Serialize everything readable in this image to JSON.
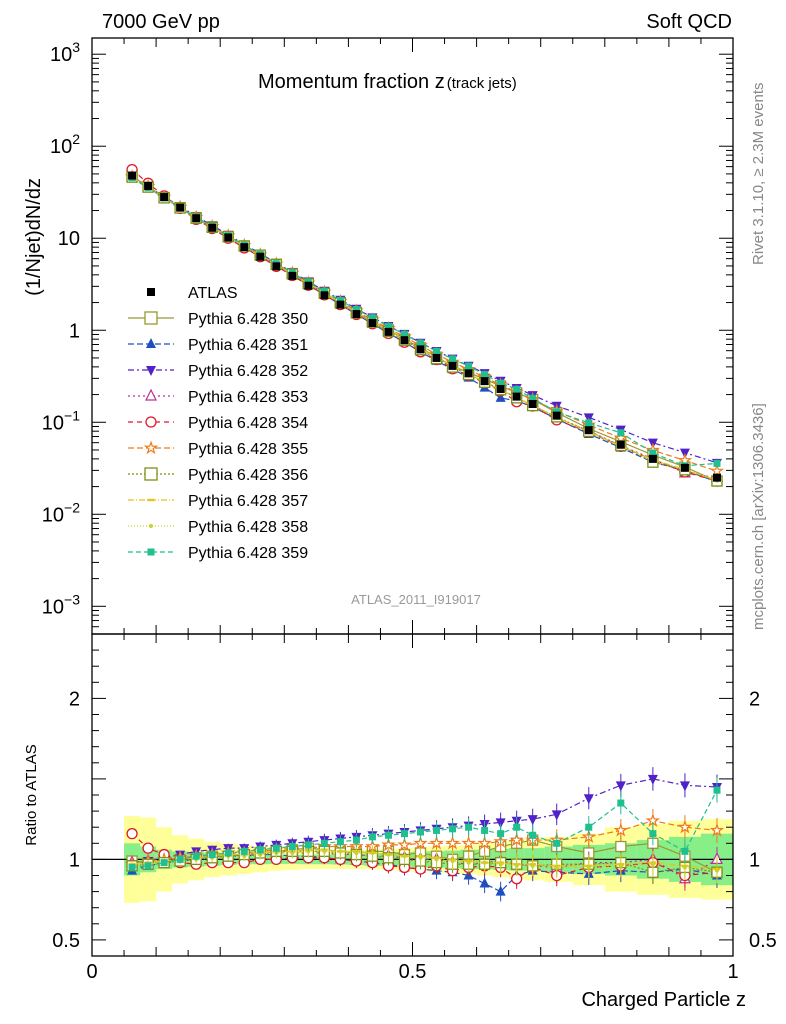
{
  "header": {
    "left": "7000 GeV pp",
    "right": "Soft QCD"
  },
  "side_labels": {
    "rivet": "Rivet 3.1.10, ≥ 2.3M events",
    "mcplots": "mcplots.cern.ch [arXiv:1306.3436]"
  },
  "analysis_id": "ATLAS_2011_I919017",
  "colors": {
    "data": "#000000",
    "band_yellow": "#ffff99",
    "band_green": "#88ee88",
    "s350": "#999933",
    "s351": "#1f4fbf",
    "s352": "#5022c8",
    "s353": "#b8309a",
    "s354": "#e0172a",
    "s355": "#f07a1a",
    "s356": "#7f8f16",
    "s357": "#e6c41a",
    "s358": "#c8d22a",
    "s359": "#1fbf8f"
  },
  "chart_data": {
    "type": "line",
    "main_panel": {
      "title_main": "Momentum fraction z",
      "title_sub": "(track jets)",
      "ylabel": "(1/Njet)dN/dz",
      "yscale": "log",
      "ylim": [
        0.0005,
        1500
      ],
      "yticks": [
        {
          "value": 0.001,
          "base": "10",
          "exp": "−3"
        },
        {
          "value": 0.01,
          "base": "10",
          "exp": "−2"
        },
        {
          "value": 0.1,
          "base": "10",
          "exp": "−1"
        },
        {
          "value": 1,
          "base": "1",
          "exp": ""
        },
        {
          "value": 10,
          "base": "10",
          "exp": ""
        },
        {
          "value": 100,
          "base": "10",
          "exp": "2"
        },
        {
          "value": 1000,
          "base": "10",
          "exp": "3"
        }
      ]
    },
    "ratio_panel": {
      "ylabel": "Ratio to ATLAS",
      "ylim": [
        0.4,
        2.4
      ],
      "yticks": [
        {
          "value": 0.5,
          "label": "0.5"
        },
        {
          "value": 1,
          "label": "1"
        },
        {
          "value": 2,
          "label": "2"
        }
      ]
    },
    "xlabel": "Charged Particle z",
    "xlim": [
      0,
      1
    ],
    "xticks": [
      {
        "value": 0,
        "label": "0"
      },
      {
        "value": 0.5,
        "label": "0.5"
      },
      {
        "value": 1,
        "label": "1"
      }
    ],
    "legend_position": "middle-left",
    "x": [
      0.0625,
      0.0875,
      0.1125,
      0.1375,
      0.1625,
      0.1875,
      0.2125,
      0.2375,
      0.2625,
      0.2875,
      0.3125,
      0.3375,
      0.3625,
      0.3875,
      0.4125,
      0.4375,
      0.4625,
      0.4875,
      0.5125,
      0.5375,
      0.5625,
      0.5875,
      0.6125,
      0.6375,
      0.6625,
      0.6875,
      0.725,
      0.775,
      0.825,
      0.875,
      0.925,
      0.975
    ],
    "data": {
      "name": "ATLAS",
      "values": [
        48,
        37,
        28,
        21.5,
        16.5,
        13,
        10.2,
        8.0,
        6.3,
        4.95,
        3.9,
        3.05,
        2.4,
        1.9,
        1.5,
        1.2,
        0.96,
        0.78,
        0.62,
        0.5,
        0.41,
        0.34,
        0.28,
        0.23,
        0.19,
        0.158,
        0.118,
        0.082,
        0.057,
        0.04,
        0.032,
        0.025
      ],
      "band_inner": [
        0.1,
        0.08,
        0.06,
        0.05,
        0.045,
        0.04,
        0.035,
        0.03,
        0.03,
        0.028,
        0.028,
        0.03,
        0.03,
        0.032,
        0.035,
        0.04,
        0.04,
        0.045,
        0.05,
        0.05,
        0.055,
        0.06,
        0.06,
        0.065,
        0.07,
        0.07,
        0.08,
        0.09,
        0.1,
        0.12,
        0.14,
        0.16
      ],
      "band_outer": [
        0.27,
        0.26,
        0.2,
        0.15,
        0.13,
        0.11,
        0.1,
        0.09,
        0.08,
        0.07,
        0.065,
        0.06,
        0.06,
        0.06,
        0.06,
        0.06,
        0.065,
        0.07,
        0.075,
        0.08,
        0.085,
        0.09,
        0.1,
        0.11,
        0.12,
        0.13,
        0.14,
        0.16,
        0.2,
        0.22,
        0.24,
        0.25
      ]
    },
    "series": [
      {
        "id": "s350",
        "name": "Pythia 6.428 350",
        "marker": "square-open",
        "dash": "",
        "values": [
          0.99,
          0.98,
          0.99,
          1.0,
          1.01,
          1.02,
          1.02,
          1.03,
          1.04,
          1.05,
          1.06,
          1.07,
          1.06,
          1.05,
          1.04,
          1.05,
          1.05,
          1.03,
          1.04,
          1.02,
          1.0,
          1.02,
          1.05,
          1.08,
          1.1,
          1.12,
          1.08,
          1.04,
          1.08,
          1.1,
          1.02,
          0.92
        ]
      },
      {
        "id": "s351",
        "name": "Pythia 6.428 351",
        "marker": "triangle-up",
        "dash": "6,3",
        "values": [
          0.93,
          0.96,
          0.98,
          0.99,
          1.0,
          1.01,
          1.02,
          1.02,
          1.03,
          1.03,
          1.02,
          1.02,
          1.01,
          1.0,
          0.99,
          0.98,
          0.97,
          0.95,
          0.94,
          0.93,
          0.92,
          0.9,
          0.85,
          0.8,
          0.9,
          0.93,
          0.92,
          0.91,
          0.93,
          0.92,
          0.94,
          0.9
        ]
      },
      {
        "id": "s352",
        "name": "Pythia 6.428 352",
        "marker": "triangle-down",
        "dash": "6,3,2,3",
        "values": [
          0.97,
          0.99,
          1.01,
          1.03,
          1.05,
          1.06,
          1.07,
          1.07,
          1.08,
          1.09,
          1.1,
          1.11,
          1.12,
          1.13,
          1.14,
          1.15,
          1.16,
          1.17,
          1.18,
          1.19,
          1.2,
          1.21,
          1.22,
          1.23,
          1.24,
          1.25,
          1.28,
          1.38,
          1.46,
          1.5,
          1.46,
          1.45
        ]
      },
      {
        "id": "s353",
        "name": "Pythia 6.428 353",
        "marker": "triangle-up-open",
        "dash": "2,3",
        "values": [
          0.98,
          0.99,
          0.99,
          1.0,
          1.01,
          1.02,
          1.02,
          1.03,
          1.03,
          1.04,
          1.04,
          1.04,
          1.04,
          1.03,
          1.03,
          1.02,
          1.02,
          1.01,
          1.0,
          1.0,
          0.98,
          0.97,
          0.98,
          0.99,
          0.97,
          0.96,
          0.95,
          0.98,
          0.98,
          1.0,
          0.88,
          1.0
        ]
      },
      {
        "id": "s354",
        "name": "Pythia 6.428 354",
        "marker": "circle-open",
        "dash": "5,4",
        "values": [
          1.16,
          1.07,
          1.03,
          0.98,
          0.97,
          0.98,
          0.98,
          0.98,
          1.0,
          1.0,
          1.01,
          1.01,
          1.01,
          1.0,
          0.99,
          0.98,
          0.96,
          0.95,
          0.94,
          0.96,
          0.93,
          0.95,
          0.96,
          0.95,
          0.88,
          0.95,
          0.9,
          0.95,
          0.96,
          0.98,
          0.9,
          0.92
        ]
      },
      {
        "id": "s355",
        "name": "Pythia 6.428 355",
        "marker": "star-open",
        "dash": "6,3",
        "values": [
          0.97,
          0.99,
          1.0,
          1.01,
          1.02,
          1.03,
          1.04,
          1.04,
          1.05,
          1.06,
          1.07,
          1.07,
          1.08,
          1.08,
          1.08,
          1.08,
          1.09,
          1.09,
          1.1,
          1.1,
          1.1,
          1.1,
          1.1,
          1.11,
          1.12,
          1.12,
          1.12,
          1.14,
          1.18,
          1.24,
          1.2,
          1.18
        ]
      },
      {
        "id": "s356",
        "name": "Pythia 6.428 356",
        "marker": "square-open",
        "dash": "2,2",
        "values": [
          0.96,
          0.97,
          0.98,
          0.99,
          1.0,
          1.01,
          1.02,
          1.03,
          1.04,
          1.05,
          1.05,
          1.05,
          1.05,
          1.04,
          1.03,
          1.02,
          1.01,
          1.0,
          0.99,
          0.98,
          0.97,
          0.97,
          0.97,
          0.98,
          0.97,
          0.96,
          0.97,
          0.97,
          0.98,
          0.92,
          0.95,
          0.92
        ]
      },
      {
        "id": "s357",
        "name": "Pythia 6.428 357",
        "marker": "dash-dot-small",
        "dash": "6,2,1,2",
        "values": [
          0.97,
          0.98,
          0.99,
          1.0,
          1.01,
          1.02,
          1.03,
          1.03,
          1.04,
          1.05,
          1.05,
          1.06,
          1.06,
          1.05,
          1.05,
          1.04,
          1.03,
          1.02,
          1.02,
          1.01,
          1.0,
          0.99,
          0.98,
          0.98,
          0.97,
          0.97,
          0.96,
          0.96,
          0.97,
          0.98,
          0.96,
          0.94
        ]
      },
      {
        "id": "s358",
        "name": "Pythia 6.428 358",
        "marker": "dot-small",
        "dash": "1,2",
        "values": [
          0.96,
          0.97,
          0.98,
          0.99,
          1.0,
          1.01,
          1.02,
          1.02,
          1.03,
          1.04,
          1.04,
          1.05,
          1.05,
          1.05,
          1.04,
          1.04,
          1.03,
          1.02,
          1.01,
          1.0,
          0.99,
          0.98,
          0.98,
          0.97,
          0.96,
          0.96,
          0.95,
          0.95,
          0.96,
          0.97,
          0.95,
          0.93
        ]
      },
      {
        "id": "s359",
        "name": "Pythia 6.428 359",
        "marker": "square-filled",
        "dash": "5,3",
        "values": [
          0.95,
          0.96,
          0.98,
          1.0,
          1.02,
          1.03,
          1.04,
          1.05,
          1.06,
          1.07,
          1.08,
          1.09,
          1.1,
          1.11,
          1.12,
          1.14,
          1.15,
          1.16,
          1.17,
          1.18,
          1.19,
          1.2,
          1.18,
          1.16,
          1.2,
          1.15,
          1.1,
          1.2,
          1.35,
          1.16,
          1.05,
          1.43
        ]
      }
    ]
  }
}
